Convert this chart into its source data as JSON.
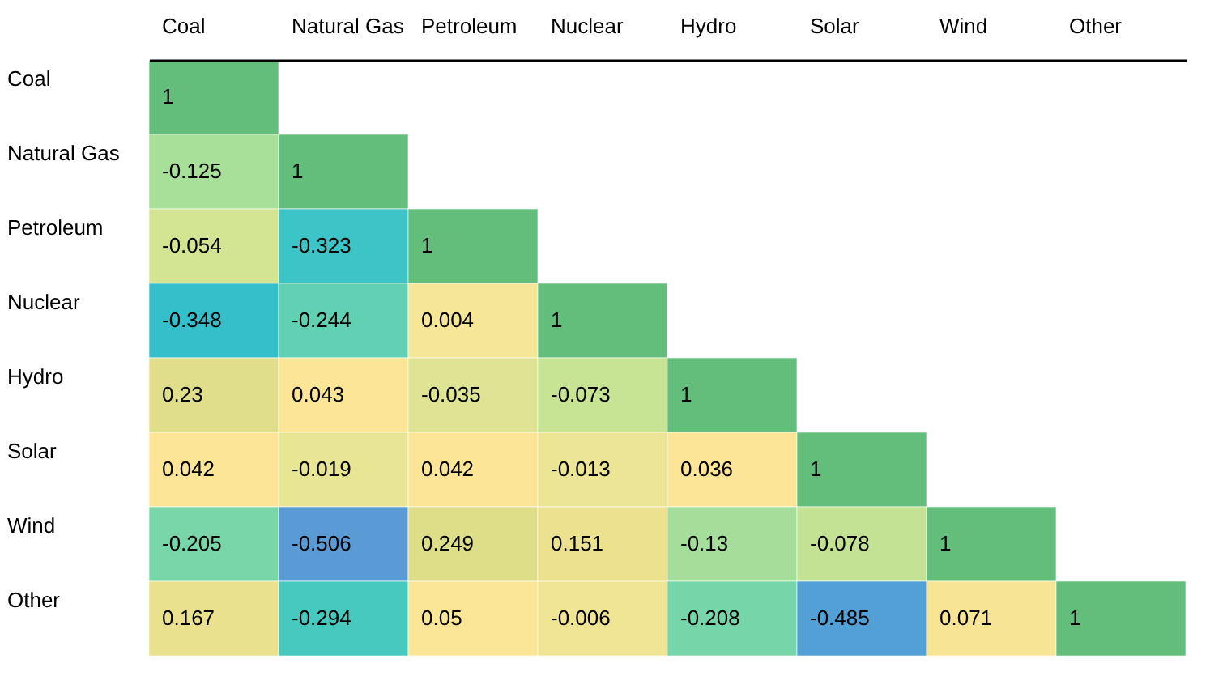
{
  "chart_data": {
    "type": "heatmap",
    "categories": [
      "Coal",
      "Natural Gas",
      "Petroleum",
      "Nuclear",
      "Hydro",
      "Solar",
      "Wind",
      "Other"
    ],
    "y_categories": [
      "Coal",
      "Natural Gas",
      "Petroleum",
      "Nuclear",
      "Hydro",
      "Solar",
      "Wind",
      "Other"
    ],
    "cells": [
      [
        1,
        null,
        null,
        null,
        null,
        null,
        null,
        null
      ],
      [
        -0.125,
        1,
        null,
        null,
        null,
        null,
        null,
        null
      ],
      [
        -0.054,
        -0.323,
        1,
        null,
        null,
        null,
        null,
        null
      ],
      [
        -0.348,
        -0.244,
        0.004,
        1,
        null,
        null,
        null,
        null
      ],
      [
        0.23,
        0.043,
        -0.035,
        -0.073,
        1,
        null,
        null,
        null
      ],
      [
        0.042,
        -0.019,
        0.042,
        -0.013,
        0.036,
        1,
        null,
        null
      ],
      [
        -0.205,
        -0.506,
        0.249,
        0.151,
        -0.13,
        -0.078,
        1,
        null
      ],
      [
        0.167,
        -0.294,
        0.05,
        -0.006,
        -0.208,
        -0.485,
        0.071,
        1
      ]
    ],
    "colors": [
      "#5b9bd5",
      "#ffe699",
      "#63be7b"
    ],
    "data_labels": true
  }
}
